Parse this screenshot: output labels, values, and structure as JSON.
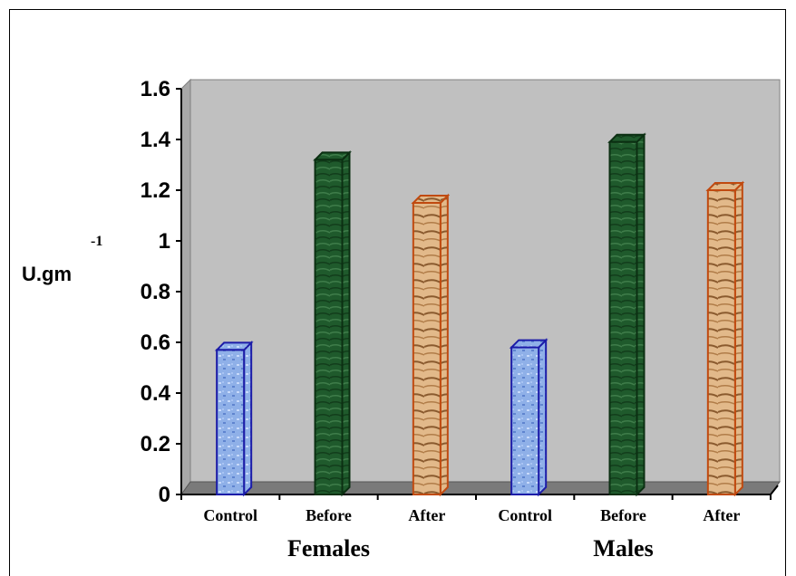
{
  "chart_data": {
    "type": "bar",
    "title": "",
    "ylabel": "U.gm",
    "ylabel_superscript": "-1",
    "ylim": [
      0,
      1.6
    ],
    "yticks": [
      "0",
      "0.2",
      "0.4",
      "0.6",
      "0.8",
      "1",
      "1.2",
      "1.4",
      "1.6"
    ],
    "groups": [
      "Females",
      "Males"
    ],
    "categories": [
      "Control",
      "Before",
      "After",
      "Control",
      "Before",
      "After"
    ],
    "values": [
      0.57,
      1.32,
      1.15,
      0.58,
      1.39,
      1.2
    ],
    "grid": false,
    "colors": {
      "Control": "#8fb0e8",
      "Before": "#1f5a2c",
      "After": "#e2b98a",
      "Control_edge": "#1c1ca8",
      "Before_edge": "#0b2f12",
      "After_edge": "#c04a10",
      "plot_bg": "#c0c0c0"
    }
  }
}
